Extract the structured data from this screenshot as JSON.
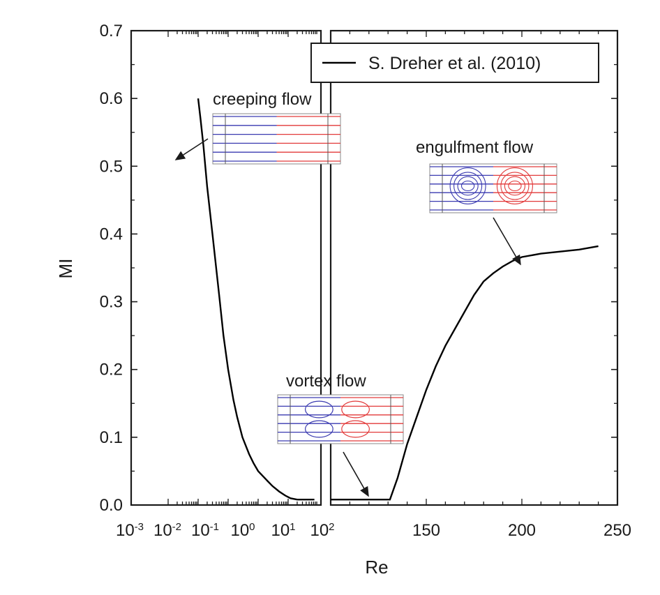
{
  "chart_data": {
    "type": "line",
    "title": "",
    "xlabel": "Re",
    "ylabel": "MI",
    "ylim": [
      0,
      0.7
    ],
    "yticks": [
      "0.0",
      "0.1",
      "0.2",
      "0.3",
      "0.4",
      "0.5",
      "0.6",
      "0.7"
    ],
    "left_panel": {
      "scale": "log",
      "xlim": [
        0.001,
        100
      ],
      "xticks": [
        {
          "base": "10",
          "exp": "-3"
        },
        {
          "base": "10",
          "exp": "-2"
        },
        {
          "base": "10",
          "exp": "-1"
        },
        {
          "base": "10",
          "exp": "0"
        },
        {
          "base": "10",
          "exp": "1"
        },
        {
          "base": "10",
          "exp": "2"
        }
      ]
    },
    "right_panel": {
      "scale": "linear",
      "xlim": [
        100,
        250
      ],
      "xticks": [
        "150",
        "200",
        "250"
      ]
    },
    "legend": {
      "position": "top-right"
    },
    "series": [
      {
        "name": "S. Dreher et al. (2010)",
        "color": "#000000",
        "left_points": [
          [
            0.01,
            0.6
          ],
          [
            0.012,
            0.57
          ],
          [
            0.015,
            0.53
          ],
          [
            0.02,
            0.47
          ],
          [
            0.03,
            0.4
          ],
          [
            0.05,
            0.31
          ],
          [
            0.07,
            0.25
          ],
          [
            0.1,
            0.2
          ],
          [
            0.15,
            0.155
          ],
          [
            0.2,
            0.13
          ],
          [
            0.3,
            0.1
          ],
          [
            0.5,
            0.075
          ],
          [
            0.7,
            0.062
          ],
          [
            1.0,
            0.05
          ],
          [
            2.0,
            0.036
          ],
          [
            3.0,
            0.028
          ],
          [
            5.0,
            0.02
          ],
          [
            8.0,
            0.014
          ],
          [
            12.0,
            0.01
          ],
          [
            20.0,
            0.008
          ],
          [
            50.0,
            0.008
          ],
          [
            75.0,
            0.008
          ]
        ],
        "right_points": [
          [
            100,
            0.008
          ],
          [
            131,
            0.008
          ],
          [
            135,
            0.04
          ],
          [
            140,
            0.09
          ],
          [
            145,
            0.13
          ],
          [
            150,
            0.17
          ],
          [
            155,
            0.205
          ],
          [
            160,
            0.235
          ],
          [
            165,
            0.26
          ],
          [
            170,
            0.285
          ],
          [
            175,
            0.31
          ],
          [
            180,
            0.33
          ],
          [
            185,
            0.342
          ],
          [
            190,
            0.352
          ],
          [
            195,
            0.36
          ],
          [
            200,
            0.366
          ],
          [
            210,
            0.371
          ],
          [
            220,
            0.374
          ],
          [
            230,
            0.377
          ],
          [
            240,
            0.382
          ]
        ]
      }
    ],
    "annotations": [
      {
        "id": "creeping",
        "text": "creeping flow"
      },
      {
        "id": "engulfment",
        "text": "engulfment flow"
      },
      {
        "id": "vortex",
        "text": "vortex flow"
      }
    ],
    "colors": {
      "blue_flow": "#3a3ab0",
      "red_flow": "#e23a3a",
      "frame": "#1a1a1a"
    }
  }
}
